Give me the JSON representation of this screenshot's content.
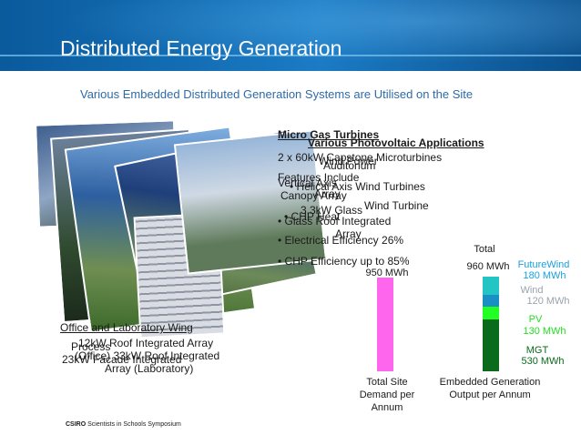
{
  "slide": {
    "title": "Distributed Energy Generation",
    "subtitle": "Various Embedded Distributed Generation Systems are Utilised on the Site",
    "footer_brand": "CSIRO",
    "footer_text": "Scientists in Schools Symposium"
  },
  "text_blocks": {
    "micro_gas_heading": "Micro Gas Turbines",
    "pv_heading": "Various Photovoltaic Applications",
    "microturbines_line": "2 x 60kW Capstone Microturbines",
    "wind_power": "Wind Power",
    "auditorium": "Auditorium",
    "features_include": "Features Include",
    "vertical_axis": "Vertical Axis",
    "wind_turbines": "• Helical Axis Wind Turbines",
    "array": "Array",
    "turbine": "Wind Turbine",
    "canopy_array": "Canopy Array",
    "glass": "3.3kW Glass",
    "roof_integrated": "• Glass Roof Integrated",
    "chp_heat": "• CHP Heat",
    "electrical_efficiency": "• Electrical Efficiency 26%",
    "chp_efficiency": "• CHP Efficiency up to 85%",
    "office_heading": "Office and Laboratory Wing",
    "roof_array_line": "12kW Roof Integrated Array",
    "facade_label": "Process",
    "office_line": "(Office) 33kW Roof Integrated",
    "facade_integrated": "23kW Facade Integrated",
    "laboratory_line": "Array (Laboratory)",
    "array_small": "Array"
  },
  "chart_data": {
    "type": "bar",
    "title": "",
    "categories": [
      "Total Site Demand per Annum",
      "Embedded Generation Output per Annum"
    ],
    "series": [
      {
        "name": "Total Site Demand",
        "values": [
          950,
          0
        ]
      },
      {
        "name": "MGT",
        "values": [
          0,
          530
        ]
      },
      {
        "name": "PV",
        "values": [
          0,
          130
        ]
      },
      {
        "name": "Wind",
        "values": [
          0,
          120
        ]
      },
      {
        "name": "FutureWind",
        "values": [
          0,
          180
        ]
      }
    ],
    "unit": "MWh",
    "labels": {
      "demand_value": "950 MWh",
      "demand_category": "Total Site Demand per Annum",
      "gen_total_heading": "Total",
      "gen_total_value": "960 MWh",
      "gen_category": "Embedded Generation Output per Annum",
      "futurewind_name": "FutureWind",
      "futurewind_value": "180 MWh",
      "wind_name": "Wind",
      "wind_value": "120 MWh",
      "pv_name": "PV",
      "pv_value": "130 MWh",
      "mgt_name": "MGT",
      "mgt_value": "530 MWh"
    },
    "colors": {
      "demand": "#ff66ee",
      "mgt": "#0b6b1c",
      "pv": "#22ff22",
      "wind": "#1a8fc4",
      "futurewind": "#22c4c4"
    },
    "ylim": [
      0,
      1000
    ]
  }
}
